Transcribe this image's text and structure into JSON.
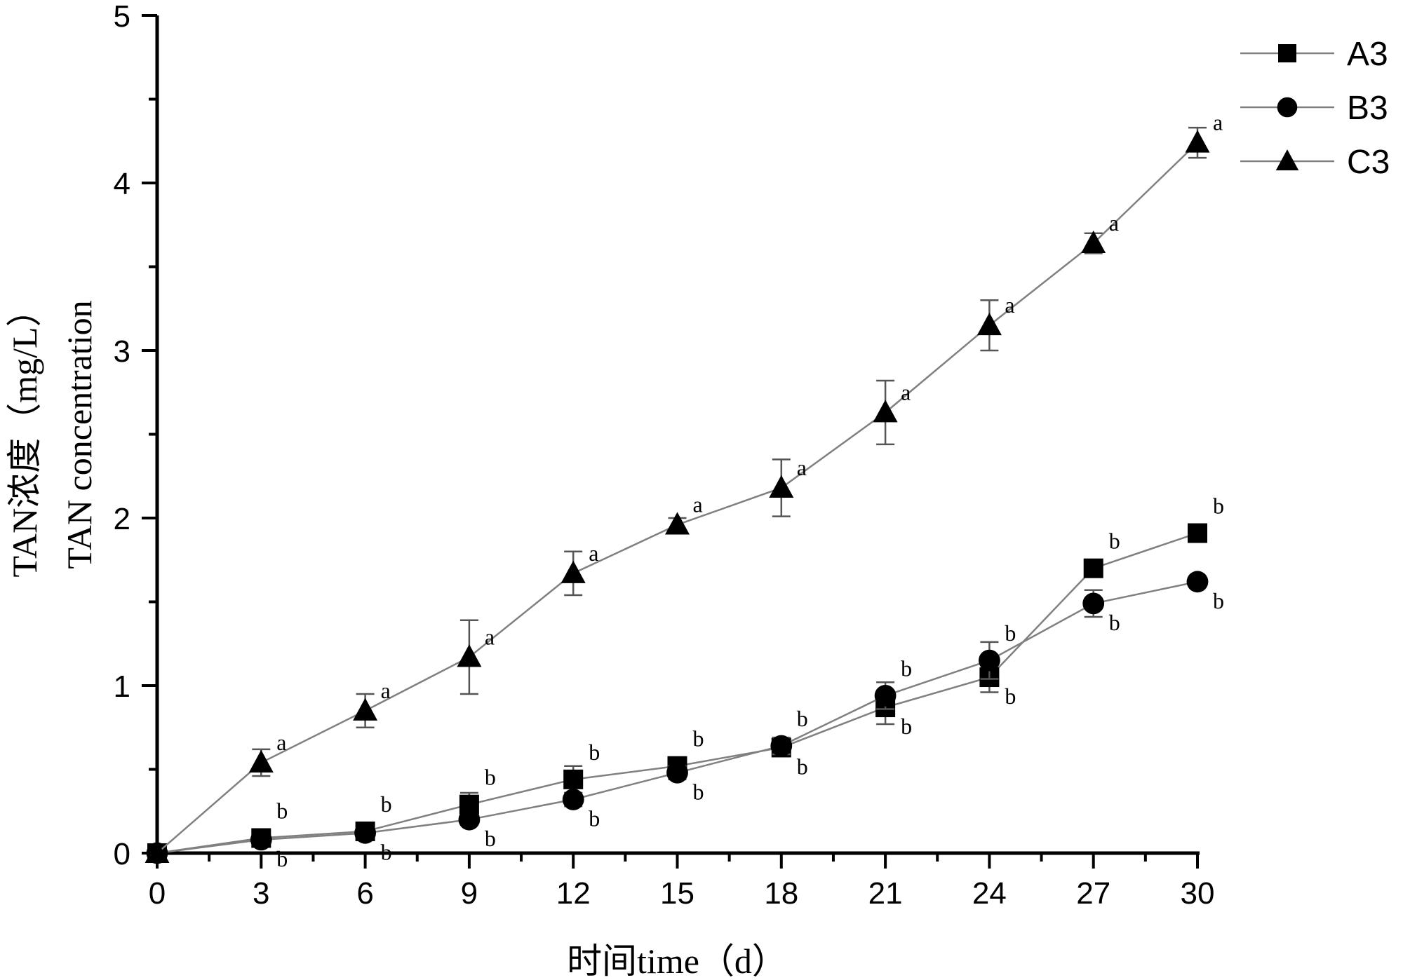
{
  "chart_data": {
    "type": "line",
    "xlabel": "时间time（d）",
    "ylabel_lines": [
      "TAN浓度（mg/L）",
      "TAN concentration"
    ],
    "xlim": [
      0,
      30
    ],
    "ylim": [
      0,
      5
    ],
    "xticks": [
      0,
      3,
      6,
      9,
      12,
      15,
      18,
      21,
      24,
      27,
      30
    ],
    "yticks": [
      0,
      1,
      2,
      3,
      4,
      5
    ],
    "grid": false,
    "legend_position": "top-right",
    "x": [
      0,
      3,
      6,
      9,
      12,
      15,
      18,
      21,
      24,
      27,
      30
    ],
    "series": [
      {
        "name": "A3",
        "marker": "square",
        "values": [
          0,
          0.09,
          0.13,
          0.29,
          0.44,
          0.52,
          0.63,
          0.87,
          1.05,
          1.7,
          1.91
        ],
        "errors": [
          0,
          0.03,
          0.03,
          0.07,
          0.08,
          0.03,
          0.05,
          0.1,
          0.09,
          0.04,
          0.05
        ],
        "letters": [
          "",
          "b",
          "b",
          "b",
          "b",
          "b",
          "b",
          "b",
          "b",
          "b",
          "b"
        ]
      },
      {
        "name": "B3",
        "marker": "circle",
        "values": [
          0,
          0.08,
          0.12,
          0.2,
          0.32,
          0.48,
          0.64,
          0.94,
          1.15,
          1.49,
          1.62
        ],
        "errors": [
          0,
          0.02,
          0.03,
          0.03,
          0.04,
          0.04,
          0.05,
          0.08,
          0.11,
          0.08,
          0.03
        ],
        "letters": [
          "",
          "b",
          "b",
          "b",
          "b",
          "b",
          "b",
          "b",
          "b",
          "b",
          "b"
        ]
      },
      {
        "name": "C3",
        "marker": "triangle",
        "values": [
          0,
          0.54,
          0.85,
          1.17,
          1.67,
          1.96,
          2.18,
          2.63,
          3.15,
          3.64,
          4.24
        ],
        "errors": [
          0,
          0.08,
          0.1,
          0.22,
          0.13,
          0.04,
          0.17,
          0.19,
          0.15,
          0.06,
          0.09
        ],
        "letters": [
          "",
          "a",
          "a",
          "a",
          "a",
          "a",
          "a",
          "a",
          "a",
          "a",
          "a"
        ]
      }
    ],
    "colors": {
      "line": "#808080",
      "marker": "#000000"
    }
  }
}
